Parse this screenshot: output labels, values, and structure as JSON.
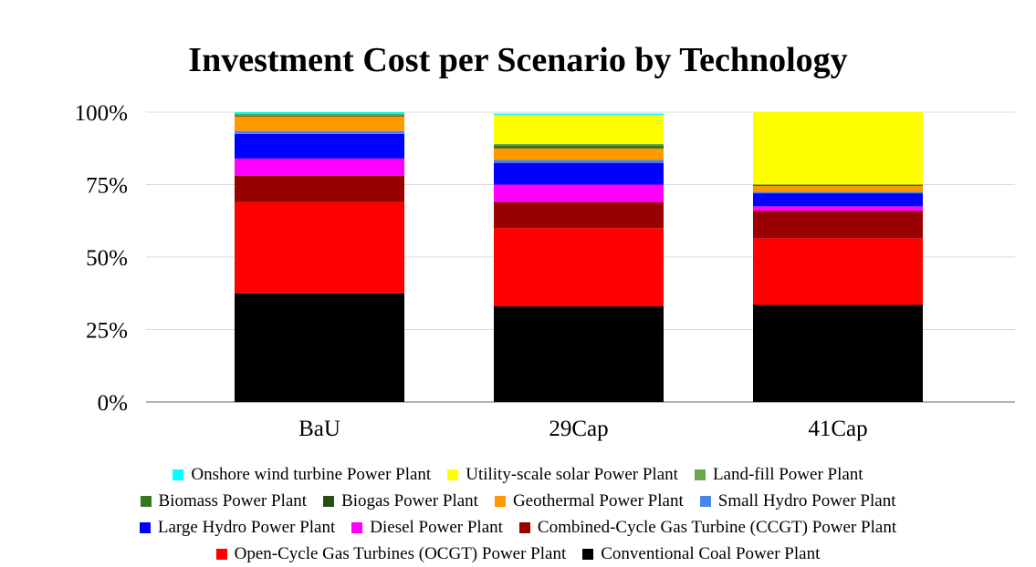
{
  "chart_data": {
    "type": "bar",
    "stacked": true,
    "title": "Investment Cost per Scenario by Technology",
    "xlabel": "",
    "ylabel": "",
    "categories": [
      "BaU",
      "29Cap",
      "41Cap"
    ],
    "y_ticks": [
      "0%",
      "25%",
      "50%",
      "75%",
      "100%"
    ],
    "ylim": [
      0,
      100
    ],
    "grid": true,
    "legend_position": "bottom",
    "series": [
      {
        "name": "Conventional Coal Power Plant",
        "color": "#000000",
        "values": [
          37.5,
          33.0,
          33.5
        ]
      },
      {
        "name": "Open-Cycle Gas Turbines (OCGT) Power Plant",
        "color": "#ff0000",
        "values": [
          31.5,
          27.0,
          23.0
        ]
      },
      {
        "name": "Combined-Cycle Gas Turbine (CCGT) Power Plant",
        "color": "#990000",
        "values": [
          9.0,
          9.0,
          9.5
        ]
      },
      {
        "name": "Diesel Power Plant",
        "color": "#ff00ff",
        "values": [
          6.0,
          6.0,
          1.5
        ]
      },
      {
        "name": "Large Hydro Power Plant",
        "color": "#0000ff",
        "values": [
          8.5,
          7.5,
          4.5
        ]
      },
      {
        "name": "Small Hydro Power Plant",
        "color": "#4a86e8",
        "values": [
          1.0,
          1.0,
          0.5
        ]
      },
      {
        "name": "Geothermal Power Plant",
        "color": "#ff9900",
        "values": [
          5.0,
          4.0,
          2.0
        ]
      },
      {
        "name": "Biogas Power Plant",
        "color": "#274e13",
        "values": [
          0.3,
          0.5,
          0.3
        ]
      },
      {
        "name": "Biomass Power Plant",
        "color": "#38761d",
        "values": [
          0.2,
          0.5,
          0.2
        ]
      },
      {
        "name": "Land-fill Power Plant",
        "color": "#6aa84f",
        "values": [
          0.5,
          0.5,
          0.0
        ]
      },
      {
        "name": "Utility-scale solar Power Plant",
        "color": "#ffff00",
        "values": [
          0.0,
          10.0,
          25.0
        ]
      },
      {
        "name": "Onshore wind turbine Power Plant",
        "color": "#00ffff",
        "values": [
          0.5,
          0.5,
          0.0
        ]
      }
    ],
    "legend_rows": [
      [
        "Onshore wind turbine Power Plant",
        "Utility-scale solar Power Plant",
        "Land-fill Power Plant"
      ],
      [
        "Biomass Power Plant",
        "Biogas Power Plant",
        "Geothermal Power Plant",
        "Small Hydro Power Plant"
      ],
      [
        "Large Hydro Power Plant",
        "Diesel Power Plant",
        "Combined-Cycle Gas Turbine (CCGT) Power Plant"
      ],
      [
        "Open-Cycle Gas Turbines (OCGT) Power Plant",
        "Conventional Coal Power Plant"
      ]
    ]
  }
}
